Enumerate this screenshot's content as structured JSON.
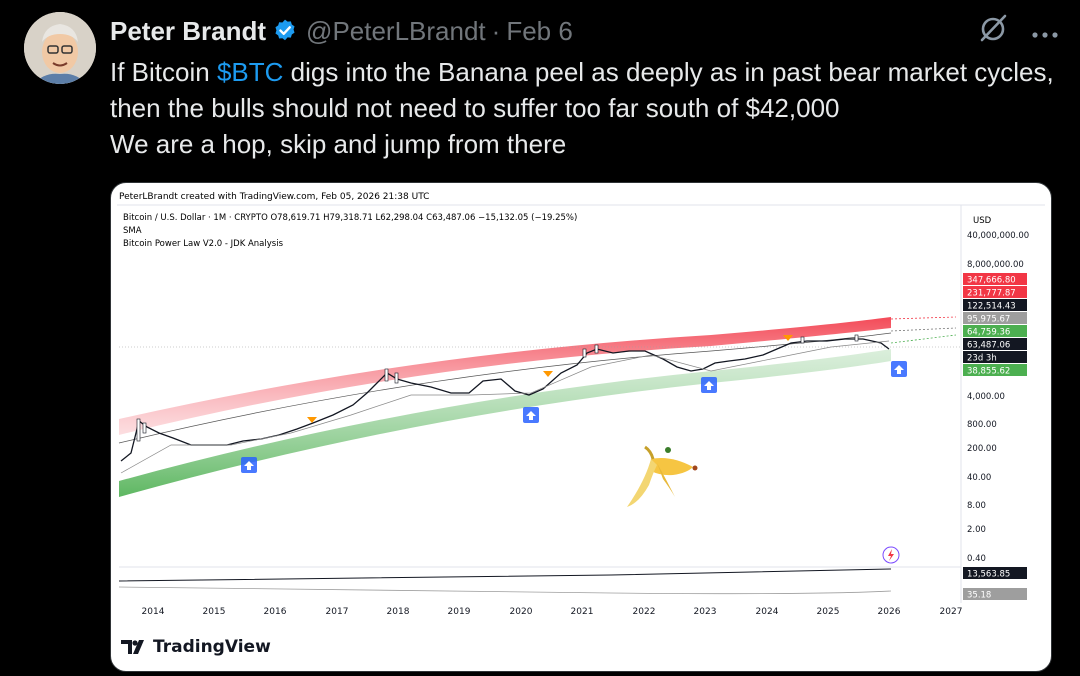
{
  "tweet": {
    "author_name": "Peter Brandt",
    "handle": "@PeterLBrandt",
    "separator": "·",
    "date": "Feb 6",
    "text_before": "If Bitcoin ",
    "cashtag": "$BTC",
    "text_after": " digs into the Banana peel as deeply as in past bear market cycles, then the bulls should not need to suffer too far south of $42,000",
    "text_line2": "We are a hop, skip and jump from there"
  },
  "icons": {
    "verified": "verified-badge-icon",
    "grok": "grok-slash-icon",
    "more": "more-dots-icon",
    "banana": "banana-peel-icon",
    "arrows": "up-arrow-marker-icon"
  },
  "chart_header": {
    "created": "PeterLBrandt created with TradingView.com, Feb 05, 2026 21:38 UTC",
    "symbol_line": "Bitcoin / U.S. Dollar · 1M · CRYPTO  O78,619.71  H79,318.71  L62,298.04  C63,487.06  −15,132.05 (−19.25%)",
    "sma": "SMA",
    "indicator": "Bitcoin Power Law V2.0 - JDK Analysis",
    "currency": "USD"
  },
  "chart_data": {
    "type": "line",
    "title": "",
    "xlabel": "",
    "ylabel": "",
    "y_scale": "log",
    "x": [
      "2014",
      "2015",
      "2016",
      "2017",
      "2018",
      "2019",
      "2020",
      "2021",
      "2022",
      "2023",
      "2024",
      "2025",
      "2026",
      "2027"
    ],
    "y_ticks": [
      "40,000,000.00",
      "8,000,000.00",
      "4,000.00",
      "800.00",
      "200.00",
      "40.00",
      "8.00",
      "2.00",
      "0.40"
    ],
    "price_labels": [
      {
        "text": "347,666.80",
        "color": "#f23645"
      },
      {
        "text": "231,777.87",
        "color": "#f23645"
      },
      {
        "text": "122,514.43",
        "color": "#131722"
      },
      {
        "text": "95,975.67",
        "color": "#9e9e9e"
      },
      {
        "text": "64,759.36",
        "color": "#4caf50"
      },
      {
        "text": "63,487.06",
        "color": "#131722"
      },
      {
        "text": "23d 3h",
        "color": "#131722"
      },
      {
        "text": "38,855.62",
        "color": "#4caf50"
      }
    ],
    "sub_labels": [
      {
        "text": "13,563.85",
        "color": "#131722"
      },
      {
        "text": "35.18",
        "color": "#9e9e9e"
      }
    ],
    "grid": false,
    "legend": "none"
  },
  "footer": {
    "brand": "TradingView"
  }
}
